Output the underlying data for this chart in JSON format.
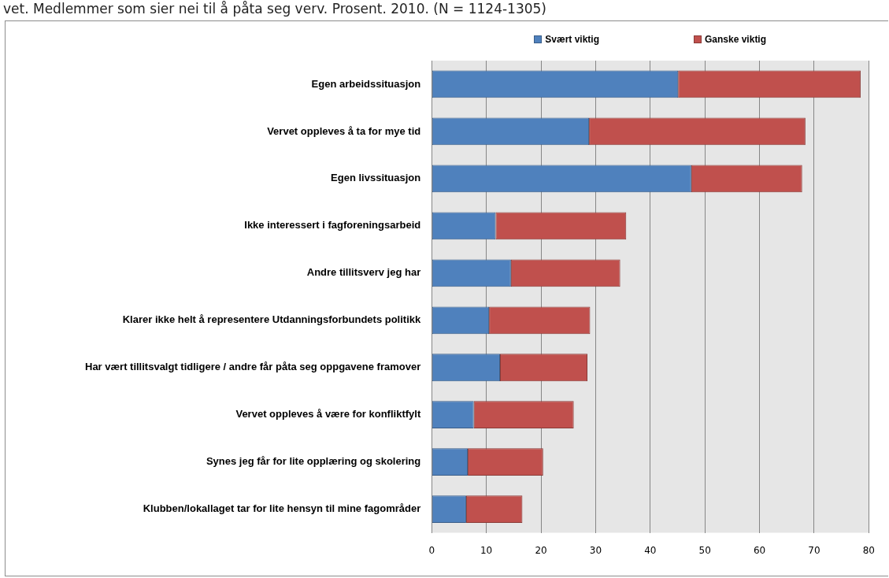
{
  "chart_data": {
    "type": "bar",
    "orientation": "horizontal",
    "stacked": true,
    "title": "vet. Medlemmer som sier nei til å påta seg verv. Prosent. 2010. (N = 1124-1305)",
    "categories": [
      "Egen arbeidssituasjon",
      "Vervet oppleves å ta for mye tid",
      "Egen livssituasjon",
      "Ikke interessert i fagforeningsarbeid",
      "Andre tillitsverv jeg har",
      "Klarer ikke helt å representere Utdanningsforbundets politikk",
      "Har vært tillitsvalgt tidligere / andre får påta seg oppgavene framover",
      "Vervet oppleves å være for konfliktfylt",
      "Synes jeg får for lite opplæring og skolering",
      "Klubben/lokallaget tar for lite hensyn til mine fagområder"
    ],
    "series": [
      {
        "name": "Svært viktig",
        "color": "#4f81bd",
        "values": [
          45.1,
          28.8,
          47.5,
          11.7,
          14.5,
          10.5,
          12.5,
          7.7,
          6.6,
          6.3
        ]
      },
      {
        "name": "Ganske viktig",
        "color": "#c0504d",
        "values": [
          33.4,
          39.6,
          20.3,
          23.9,
          20.0,
          18.5,
          16.0,
          18.3,
          13.8,
          10.3
        ]
      }
    ],
    "xlim": [
      0,
      80
    ],
    "xticks": [
      0,
      10,
      20,
      30,
      40,
      50,
      60,
      70,
      80
    ],
    "grid": "x",
    "legend": "top"
  }
}
